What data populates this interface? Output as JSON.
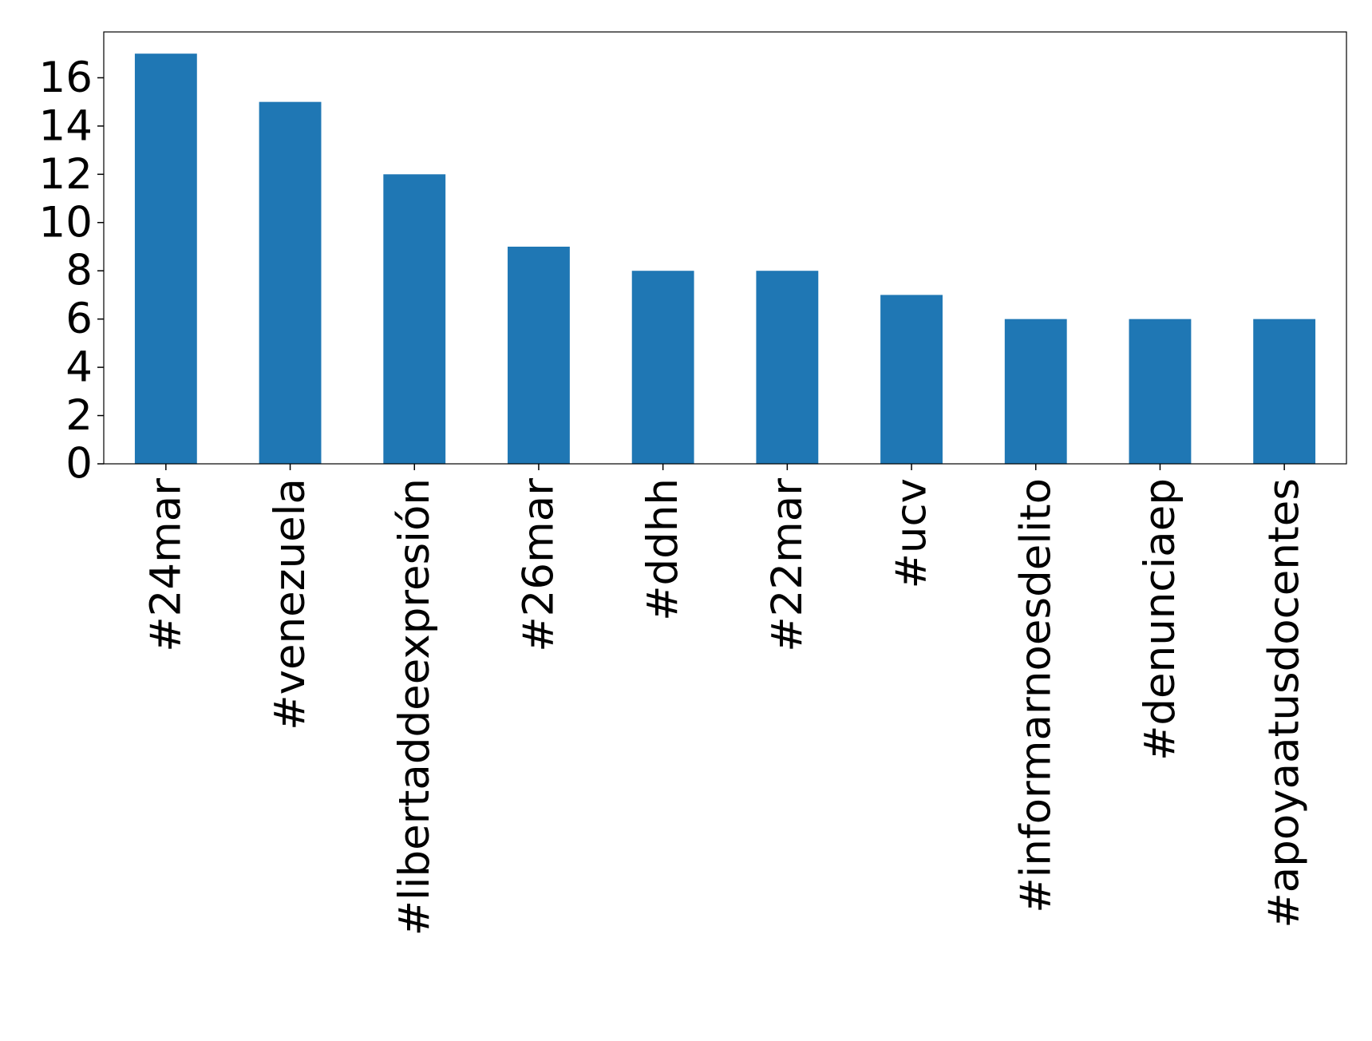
{
  "chart_data": {
    "type": "bar",
    "categories": [
      "#24mar",
      "#venezuela",
      "#libertaddeexpresión",
      "#26mar",
      "#ddhh",
      "#22mar",
      "#ucv",
      "#informarnoesdelito",
      "#denunciaep",
      "#apoyaatusdocentes"
    ],
    "values": [
      17,
      15,
      12,
      9,
      8,
      8,
      7,
      6,
      6,
      6
    ],
    "color": "#1f77b4",
    "ylim": [
      0,
      17.9
    ],
    "yticks": [
      0,
      2,
      4,
      6,
      8,
      10,
      12,
      14,
      16
    ],
    "grid": false
  }
}
